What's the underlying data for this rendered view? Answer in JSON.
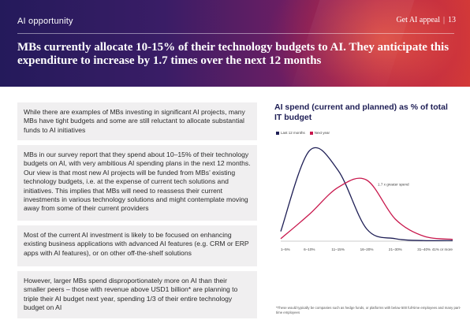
{
  "header": {
    "section": "AI opportunity",
    "doc_title": "Get AI appeal",
    "page_number": "13",
    "headline": "MBs currently allocate 10-15% of their technology budgets to AI. They anticipate this expenditure to increase by 1.7 times over the next 12 months"
  },
  "paragraphs": [
    "While there are examples of MBs investing in significant AI projects, many MBs have tight budgets and some are still reluctant to allocate substantial funds to AI initiatives",
    "MBs in our survey report that they spend about 10–15% of their technology budgets on AI, with very ambitious AI spending plans in the next 12 months. Our view is that most new AI projects will be funded from MBs’ existing technology budgets, i.e. at the expense of current tech solutions and initiatives. This implies that MBs will need to reassess their current investments in various technology solutions and might contemplate moving away from some of their current providers",
    "Most of the current AI investment is likely to be focused on enhancing existing business applications with advanced AI features (e.g. CRM or ERP apps with AI features), or on other off-the-shelf solutions",
    "However, larger MBs spend disproportionately more on AI than their smaller peers – those with revenue above USD1 billion* are planning to triple their AI budget next year, spending 1/3 of their entire technology budget on AI"
  ],
  "chart_data": {
    "type": "line",
    "title": "AI spend (current and planned) as % of total IT budget",
    "categories": [
      "1–5%",
      "6–10%",
      "11–15%",
      "16–20%",
      "21–30%",
      "31–40%",
      "41% or more"
    ],
    "series": [
      {
        "name": "Last 12 months",
        "color": "#1e1e55",
        "values": [
          8,
          74,
          58,
          10,
          2,
          0.5,
          0.5
        ]
      },
      {
        "name": "Next year",
        "color": "#c8174c",
        "values": [
          2,
          22,
          44,
          50,
          18,
          4,
          1.5
        ]
      }
    ],
    "annotation": "1.7 x greater spend",
    "ylim": [
      0,
      80
    ],
    "grid": false,
    "legend": "top-left"
  },
  "footnote": "*These would typically be companies such as hedge funds, or platforms with below 500 full-time employees and many part-time employees"
}
